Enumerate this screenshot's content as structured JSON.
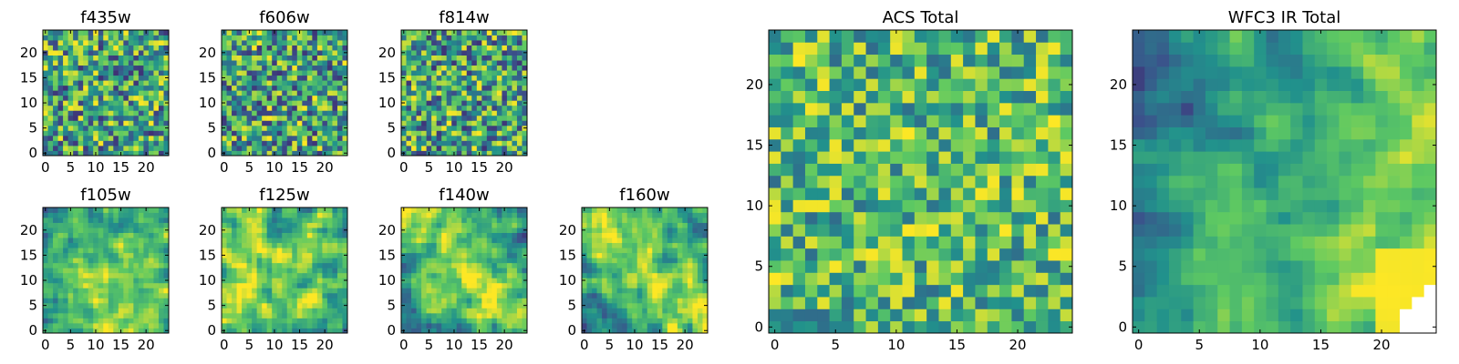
{
  "figure": {
    "title": "",
    "colormap": [
      "#440154",
      "#3b528b",
      "#21918c",
      "#5ec962",
      "#fde725"
    ]
  },
  "chart_data": [
    {
      "type": "heatmap",
      "title": "f435w",
      "grid_size": 25,
      "x_ticks": [
        0,
        5,
        10,
        15,
        20
      ],
      "y_ticks": [
        0,
        5,
        10,
        15,
        20
      ],
      "xlim": [
        0,
        24
      ],
      "ylim": [
        0,
        24
      ],
      "texture": "noise",
      "seed": 11
    },
    {
      "type": "heatmap",
      "title": "f606w",
      "grid_size": 25,
      "x_ticks": [
        0,
        5,
        10,
        15,
        20
      ],
      "y_ticks": [
        0,
        5,
        10,
        15,
        20
      ],
      "xlim": [
        0,
        24
      ],
      "ylim": [
        0,
        24
      ],
      "texture": "noise",
      "seed": 23
    },
    {
      "type": "heatmap",
      "title": "f814w",
      "grid_size": 25,
      "x_ticks": [
        0,
        5,
        10,
        15,
        20
      ],
      "y_ticks": [
        0,
        5,
        10,
        15,
        20
      ],
      "xlim": [
        0,
        24
      ],
      "ylim": [
        0,
        24
      ],
      "texture": "noise",
      "seed": 37
    },
    {
      "type": "heatmap",
      "title": "f105w",
      "grid_size": 25,
      "x_ticks": [
        0,
        5,
        10,
        15,
        20
      ],
      "y_ticks": [
        0,
        5,
        10,
        15,
        20
      ],
      "xlim": [
        0,
        24
      ],
      "ylim": [
        0,
        24
      ],
      "texture": "smooth-center",
      "seed": 41
    },
    {
      "type": "heatmap",
      "title": "f125w",
      "grid_size": 25,
      "x_ticks": [
        0,
        5,
        10,
        15,
        20
      ],
      "y_ticks": [
        0,
        5,
        10,
        15,
        20
      ],
      "xlim": [
        0,
        24
      ],
      "ylim": [
        0,
        24
      ],
      "texture": "smooth",
      "seed": 53
    },
    {
      "type": "heatmap",
      "title": "f140w",
      "grid_size": 25,
      "x_ticks": [
        0,
        5,
        10,
        15,
        20
      ],
      "y_ticks": [
        0,
        5,
        10,
        15,
        20
      ],
      "xlim": [
        0,
        24
      ],
      "ylim": [
        0,
        24
      ],
      "texture": "smooth-diagonal",
      "seed": 67
    },
    {
      "type": "heatmap",
      "title": "f160w",
      "grid_size": 25,
      "x_ticks": [
        0,
        5,
        10,
        15,
        20
      ],
      "y_ticks": [
        0,
        5,
        10,
        15,
        20
      ],
      "xlim": [
        0,
        24
      ],
      "ylim": [
        0,
        24
      ],
      "texture": "smooth-diagonal",
      "seed": 79
    },
    {
      "type": "heatmap",
      "title": "ACS Total",
      "grid_size": 25,
      "x_ticks": [
        0,
        5,
        10,
        15,
        20
      ],
      "y_ticks": [
        0,
        5,
        10,
        15,
        20
      ],
      "xlim": [
        0,
        24
      ],
      "ylim": [
        0,
        24
      ],
      "texture": "noise-bright",
      "seed": 97
    },
    {
      "type": "heatmap",
      "title": "WFC3 IR Total",
      "grid_size": 25,
      "x_ticks": [
        0,
        5,
        10,
        15,
        20
      ],
      "y_ticks": [
        0,
        5,
        10,
        15,
        20
      ],
      "xlim": [
        0,
        24
      ],
      "ylim": [
        0,
        24
      ],
      "texture": "smooth-corner",
      "seed": 101
    }
  ]
}
